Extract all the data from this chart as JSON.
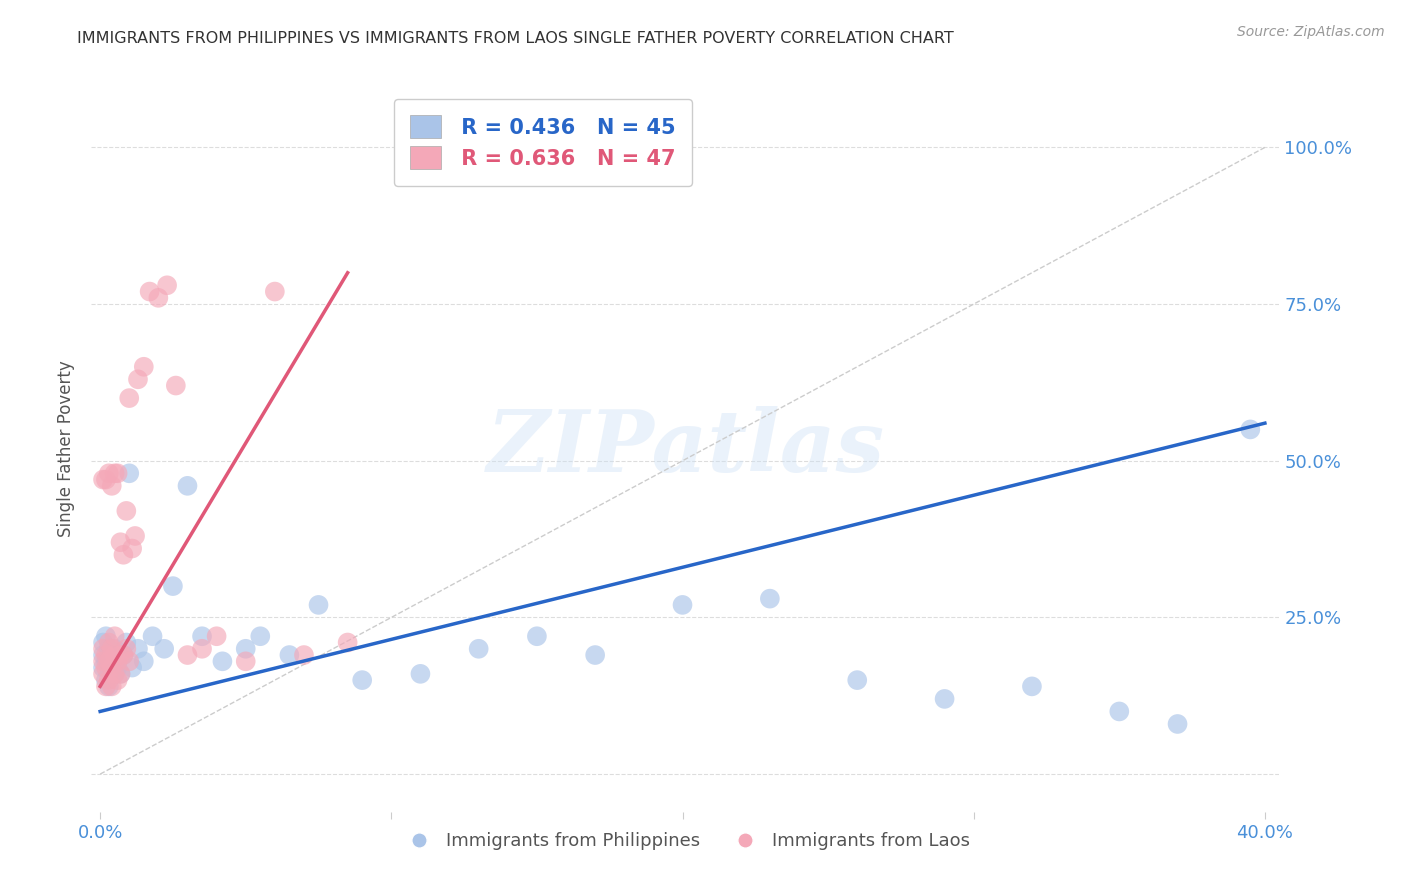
{
  "title": "IMMIGRANTS FROM PHILIPPINES VS IMMIGRANTS FROM LAOS SINGLE FATHER POVERTY CORRELATION CHART",
  "source": "Source: ZipAtlas.com",
  "ylabel": "Single Father Poverty",
  "y_ticks": [
    0.0,
    0.25,
    0.5,
    0.75,
    1.0
  ],
  "y_tick_labels": [
    "",
    "25.0%",
    "50.0%",
    "75.0%",
    "100.0%"
  ],
  "xlim": [
    -0.003,
    0.405
  ],
  "ylim": [
    -0.06,
    1.1
  ],
  "watermark": "ZIPatlas",
  "legend_r1": "R = 0.436",
  "legend_n1": "N = 45",
  "legend_r2": "R = 0.636",
  "legend_n2": "N = 47",
  "color_philippines": "#aac4e8",
  "color_laos": "#f4a8b8",
  "color_line_philippines": "#2866c8",
  "color_line_laos": "#e05878",
  "color_axis_labels": "#4a90d9",
  "color_title": "#333333",
  "background": "#ffffff",
  "philippines_x": [
    0.001,
    0.001,
    0.001,
    0.002,
    0.002,
    0.002,
    0.003,
    0.003,
    0.003,
    0.004,
    0.004,
    0.005,
    0.005,
    0.006,
    0.006,
    0.007,
    0.008,
    0.009,
    0.01,
    0.011,
    0.013,
    0.015,
    0.018,
    0.022,
    0.025,
    0.03,
    0.035,
    0.042,
    0.05,
    0.055,
    0.065,
    0.075,
    0.09,
    0.11,
    0.13,
    0.15,
    0.17,
    0.2,
    0.23,
    0.26,
    0.29,
    0.32,
    0.35,
    0.37,
    0.395
  ],
  "philippines_y": [
    0.15,
    0.18,
    0.2,
    0.16,
    0.19,
    0.22,
    0.14,
    0.17,
    0.21,
    0.18,
    0.2,
    0.15,
    0.19,
    0.17,
    0.2,
    0.16,
    0.18,
    0.2,
    0.48,
    0.17,
    0.2,
    0.18,
    0.22,
    0.2,
    0.3,
    0.46,
    0.22,
    0.18,
    0.2,
    0.22,
    0.19,
    0.27,
    0.15,
    0.15,
    0.2,
    0.22,
    0.18,
    0.15,
    0.16,
    0.14,
    0.13,
    0.12,
    0.1,
    0.08,
    0.55
  ],
  "philippines_y_fixed": [
    0.17,
    0.19,
    0.21,
    0.15,
    0.18,
    0.22,
    0.14,
    0.17,
    0.2,
    0.18,
    0.19,
    0.16,
    0.2,
    0.17,
    0.19,
    0.16,
    0.19,
    0.21,
    0.48,
    0.17,
    0.2,
    0.18,
    0.22,
    0.2,
    0.3,
    0.46,
    0.22,
    0.18,
    0.2,
    0.22,
    0.19,
    0.27,
    0.15,
    0.16,
    0.2,
    0.22,
    0.19,
    0.27,
    0.28,
    0.15,
    0.12,
    0.14,
    0.1,
    0.08,
    0.55
  ],
  "laos_x": [
    0.001,
    0.001,
    0.001,
    0.001,
    0.002,
    0.002,
    0.002,
    0.002,
    0.003,
    0.003,
    0.003,
    0.003,
    0.004,
    0.004,
    0.004,
    0.004,
    0.005,
    0.005,
    0.005,
    0.005,
    0.006,
    0.006,
    0.006,
    0.007,
    0.007,
    0.007,
    0.008,
    0.008,
    0.009,
    0.009,
    0.01,
    0.01,
    0.011,
    0.012,
    0.013,
    0.015,
    0.017,
    0.02,
    0.023,
    0.026,
    0.03,
    0.035,
    0.04,
    0.05,
    0.06,
    0.07,
    0.085
  ],
  "laos_y": [
    0.16,
    0.18,
    0.2,
    0.47,
    0.14,
    0.17,
    0.19,
    0.47,
    0.15,
    0.18,
    0.21,
    0.48,
    0.14,
    0.17,
    0.2,
    0.46,
    0.16,
    0.19,
    0.22,
    0.48,
    0.15,
    0.18,
    0.48,
    0.16,
    0.19,
    0.37,
    0.19,
    0.35,
    0.2,
    0.42,
    0.18,
    0.6,
    0.36,
    0.38,
    0.63,
    0.65,
    0.77,
    0.76,
    0.78,
    0.62,
    0.19,
    0.2,
    0.22,
    0.18,
    0.77,
    0.19,
    0.21
  ],
  "phil_line_x0": 0.0,
  "phil_line_x1": 0.4,
  "phil_line_y0": 0.1,
  "phil_line_y1": 0.56,
  "laos_line_x0": 0.0,
  "laos_line_x1": 0.085,
  "laos_line_y0": 0.14,
  "laos_line_y1": 0.8
}
